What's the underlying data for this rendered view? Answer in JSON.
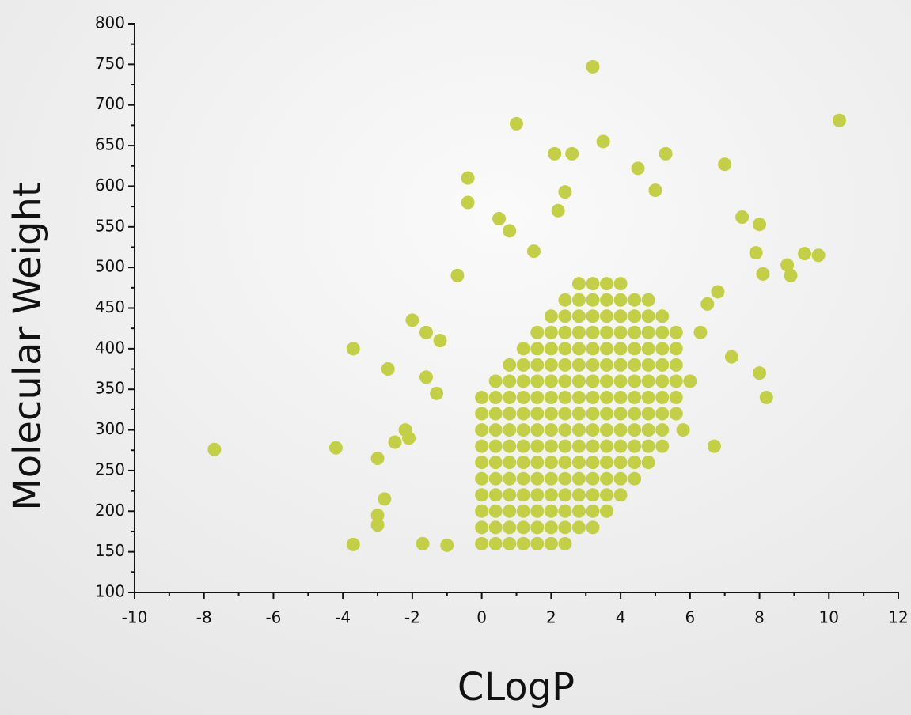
{
  "chart_data": {
    "type": "scatter",
    "x_label": "CLogP",
    "y_label": "Molecular Weight",
    "xlim": [
      -10,
      12
    ],
    "xticks": [
      -10,
      -8,
      -6,
      -4,
      -2,
      0,
      2,
      4,
      6,
      8,
      10,
      12
    ],
    "ylim": [
      100,
      800
    ],
    "yticks": [
      100,
      150,
      200,
      250,
      300,
      350,
      400,
      450,
      500,
      550,
      600,
      650,
      700,
      750,
      800
    ],
    "color": "#c3cf45",
    "x": [
      0,
      0,
      0,
      0,
      0,
      0,
      0,
      0,
      0,
      0,
      0.4,
      0.4,
      0.4,
      0.4,
      0.4,
      0.4,
      0.4,
      0.4,
      0.4,
      0.4,
      0.4,
      0.8,
      0.8,
      0.8,
      0.8,
      0.8,
      0.8,
      0.8,
      0.8,
      0.8,
      0.8,
      0.8,
      0.8,
      1.2,
      1.2,
      1.2,
      1.2,
      1.2,
      1.2,
      1.2,
      1.2,
      1.2,
      1.2,
      1.2,
      1.2,
      1.2,
      1.6,
      1.6,
      1.6,
      1.6,
      1.6,
      1.6,
      1.6,
      1.6,
      1.6,
      1.6,
      1.6,
      1.6,
      1.6,
      1.6,
      2,
      2,
      2,
      2,
      2,
      2,
      2,
      2,
      2,
      2,
      2,
      2,
      2,
      2,
      2,
      2.4,
      2.4,
      2.4,
      2.4,
      2.4,
      2.4,
      2.4,
      2.4,
      2.4,
      2.4,
      2.4,
      2.4,
      2.4,
      2.4,
      2.4,
      2.4,
      2.8,
      2.8,
      2.8,
      2.8,
      2.8,
      2.8,
      2.8,
      2.8,
      2.8,
      2.8,
      2.8,
      2.8,
      2.8,
      2.8,
      2.8,
      2.8,
      3.2,
      3.2,
      3.2,
      3.2,
      3.2,
      3.2,
      3.2,
      3.2,
      3.2,
      3.2,
      3.2,
      3.2,
      3.2,
      3.2,
      3.2,
      3.2,
      3.6,
      3.6,
      3.6,
      3.6,
      3.6,
      3.6,
      3.6,
      3.6,
      3.6,
      3.6,
      3.6,
      3.6,
      3.6,
      3.6,
      3.6,
      4,
      4,
      4,
      4,
      4,
      4,
      4,
      4,
      4,
      4,
      4,
      4,
      4,
      4,
      4.4,
      4.4,
      4.4,
      4.4,
      4.4,
      4.4,
      4.4,
      4.4,
      4.4,
      4.4,
      4.4,
      4.4,
      4.8,
      4.8,
      4.8,
      4.8,
      4.8,
      4.8,
      4.8,
      4.8,
      4.8,
      4.8,
      4.8,
      5.2,
      5.2,
      5.2,
      5.2,
      5.2,
      5.2,
      5.2,
      5.2,
      5.2,
      5.6,
      5.6,
      5.6,
      5.6,
      5.6,
      5.6,
      -7.7,
      -4.2,
      -3.7,
      -3.7,
      -2.7,
      -2,
      -3,
      -3,
      -3,
      -2.8,
      -2.5,
      -2.2,
      -2.1,
      -1.6,
      -1.6,
      -1.3,
      -1.2,
      -0.4,
      -0.4,
      -0.7,
      0.5,
      0.8,
      1,
      3.2,
      10.3,
      7,
      8.2,
      8,
      8.8,
      8.9,
      9.3,
      9.7,
      8.1,
      7.5,
      8,
      7.9,
      5.3,
      4.5,
      3.5,
      2.6,
      2.1,
      2.4,
      5,
      6.7,
      6.8,
      7.2,
      -1,
      -1.7,
      6,
      6.3,
      6.5,
      5.8,
      1.5,
      2.2
    ],
    "values": [
      160,
      180,
      200,
      220,
      240,
      260,
      280,
      300,
      320,
      340,
      160,
      180,
      200,
      220,
      240,
      260,
      280,
      300,
      320,
      340,
      360,
      160,
      180,
      200,
      220,
      240,
      260,
      280,
      300,
      320,
      340,
      360,
      380,
      160,
      180,
      200,
      220,
      240,
      260,
      280,
      300,
      320,
      340,
      360,
      380,
      400,
      160,
      180,
      200,
      220,
      240,
      260,
      280,
      300,
      320,
      340,
      360,
      380,
      400,
      420,
      160,
      180,
      200,
      220,
      240,
      260,
      280,
      300,
      320,
      340,
      360,
      380,
      400,
      420,
      440,
      160,
      180,
      200,
      220,
      240,
      260,
      280,
      300,
      320,
      340,
      360,
      380,
      400,
      420,
      440,
      460,
      180,
      200,
      220,
      240,
      260,
      280,
      300,
      320,
      340,
      360,
      380,
      400,
      420,
      440,
      460,
      480,
      180,
      200,
      220,
      240,
      260,
      280,
      300,
      320,
      340,
      360,
      380,
      400,
      420,
      440,
      460,
      480,
      200,
      220,
      240,
      260,
      280,
      300,
      320,
      340,
      360,
      380,
      400,
      420,
      440,
      460,
      480,
      220,
      240,
      260,
      280,
      300,
      320,
      340,
      360,
      380,
      400,
      420,
      440,
      460,
      480,
      240,
      260,
      280,
      300,
      320,
      340,
      360,
      380,
      400,
      420,
      440,
      460,
      260,
      280,
      300,
      320,
      340,
      360,
      380,
      400,
      420,
      440,
      460,
      280,
      300,
      320,
      340,
      360,
      380,
      400,
      420,
      440,
      320,
      340,
      360,
      380,
      400,
      420,
      276,
      278,
      400,
      159,
      375,
      435,
      195,
      183,
      265,
      215,
      285,
      300,
      290,
      365,
      420,
      345,
      410,
      610,
      580,
      490,
      560,
      545,
      677,
      747,
      681,
      627,
      340,
      370,
      503,
      490,
      517,
      515,
      492,
      562,
      553,
      518,
      640,
      622,
      655,
      640,
      640,
      593,
      595,
      280,
      470,
      390,
      158,
      160,
      360,
      420,
      455,
      300,
      520,
      570
    ]
  }
}
